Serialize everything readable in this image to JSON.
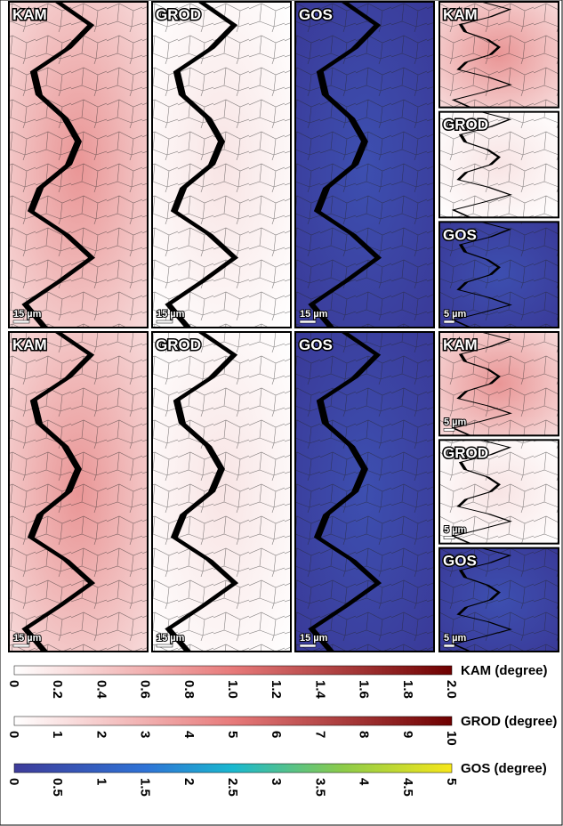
{
  "rows": [
    {
      "panels": [
        {
          "label": "KAM",
          "scale": "15 µm"
        },
        {
          "label": "GROD",
          "scale": "15 µm"
        },
        {
          "label": "GOS",
          "scale": "15 µm"
        }
      ],
      "insets": [
        {
          "label": "KAM"
        },
        {
          "label": "GROD"
        },
        {
          "label": "GOS",
          "scale": "5 µm"
        }
      ]
    },
    {
      "panels": [
        {
          "label": "KAM",
          "scale": "15 µm"
        },
        {
          "label": "GROD",
          "scale": "15 µm"
        },
        {
          "label": "GOS",
          "scale": "15 µm"
        }
      ],
      "insets": [
        {
          "label": "KAM",
          "scale": "5 µm"
        },
        {
          "label": "GROD",
          "scale": "5 µm"
        },
        {
          "label": "GOS",
          "scale": "5 µm"
        }
      ]
    }
  ],
  "colorbars": [
    {
      "title": "KAM (degree)",
      "ticks": [
        "0",
        "0.2",
        "0.4",
        "0.6",
        "0.8",
        "1.0",
        "1.2",
        "1.4",
        "1.6",
        "1.8",
        "2.0"
      ]
    },
    {
      "title": "GROD (degree)",
      "ticks": [
        "0",
        "1",
        "2",
        "3",
        "4",
        "5",
        "6",
        "7",
        "8",
        "9",
        "10"
      ]
    },
    {
      "title": "GOS (degree)",
      "ticks": [
        "0",
        "0.5",
        "1",
        "1.5",
        "2",
        "2.5",
        "3",
        "3.5",
        "4",
        "4.5",
        "5"
      ]
    }
  ]
}
